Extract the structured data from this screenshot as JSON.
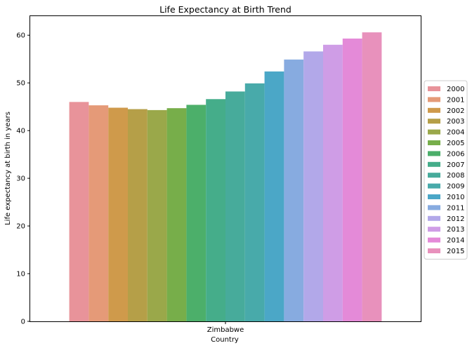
{
  "chart_data": {
    "type": "bar",
    "title": "Life Expectancy at Birth Trend",
    "xlabel": "Country",
    "ylabel": "Life expectancy at birth in years",
    "categories": [
      "Zimbabwe"
    ],
    "ylim": [
      0,
      64
    ],
    "yticks": [
      0,
      10,
      20,
      30,
      40,
      50,
      60
    ],
    "ytick_labels": [
      "0",
      "10",
      "20",
      "30",
      "40",
      "50",
      "60"
    ],
    "grid": false,
    "legend_position": "right",
    "series": [
      {
        "name": "2000",
        "values": [
          46.0
        ],
        "color": "#e8939a"
      },
      {
        "name": "2001",
        "values": [
          45.3
        ],
        "color": "#e59a78"
      },
      {
        "name": "2002",
        "values": [
          44.8
        ],
        "color": "#cf9a4b"
      },
      {
        "name": "2003",
        "values": [
          44.5
        ],
        "color": "#b59f48"
      },
      {
        "name": "2004",
        "values": [
          44.3
        ],
        "color": "#9aa84a"
      },
      {
        "name": "2005",
        "values": [
          44.7
        ],
        "color": "#77ae4a"
      },
      {
        "name": "2006",
        "values": [
          45.4
        ],
        "color": "#4caf6a"
      },
      {
        "name": "2007",
        "values": [
          46.6
        ],
        "color": "#45ad8a"
      },
      {
        "name": "2008",
        "values": [
          48.2
        ],
        "color": "#47ab9b"
      },
      {
        "name": "2009",
        "values": [
          49.9
        ],
        "color": "#48aaaa"
      },
      {
        "name": "2010",
        "values": [
          52.4
        ],
        "color": "#4ba7c7"
      },
      {
        "name": "2011",
        "values": [
          54.9
        ],
        "color": "#87abe0"
      },
      {
        "name": "2012",
        "values": [
          56.6
        ],
        "color": "#b2a8e9"
      },
      {
        "name": "2013",
        "values": [
          58.0
        ],
        "color": "#cf9de6"
      },
      {
        "name": "2014",
        "values": [
          59.3
        ],
        "color": "#e48ad8"
      },
      {
        "name": "2015",
        "values": [
          60.6
        ],
        "color": "#e891bc"
      }
    ]
  }
}
